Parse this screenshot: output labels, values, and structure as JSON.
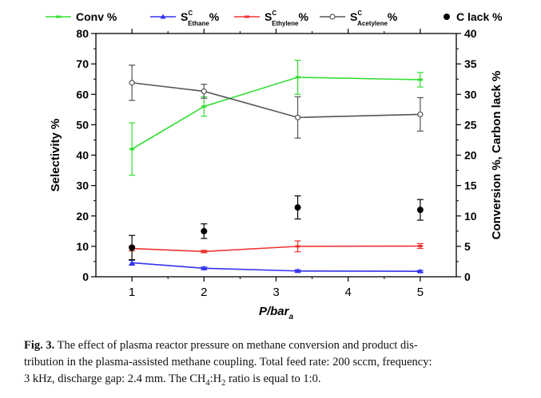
{
  "chart_data": {
    "type": "line",
    "x": [
      1,
      2,
      3.3,
      5
    ],
    "xlabel": "P/bar",
    "xlabel_sub": "a",
    "xticks": [
      "1",
      "2",
      "3",
      "4",
      "5"
    ],
    "xlim": [
      0.5,
      5.5
    ],
    "ylabel_left": "Selectivity %",
    "ylim_left": [
      0,
      80
    ],
    "yticks_left": [
      "0",
      "10",
      "20",
      "30",
      "40",
      "50",
      "60",
      "70",
      "80"
    ],
    "ylabel_right": "Conversion %, Carbon lack %",
    "ylim_right": [
      0,
      40
    ],
    "yticks_right": [
      "0",
      "5",
      "10",
      "15",
      "20",
      "25",
      "30",
      "35",
      "40"
    ],
    "legend_position": "top",
    "series": [
      {
        "name": "Conv %",
        "axis": "right",
        "color": "#33dd33",
        "marker": "dash",
        "line": true,
        "values": [
          21.0,
          28.0,
          32.8,
          32.4
        ],
        "errors": [
          4.3,
          1.6,
          2.8,
          1.2
        ]
      },
      {
        "name": "S",
        "name_sup": "C",
        "name_sub": "Ethane",
        "name_suffix": "%",
        "axis": "left",
        "color": "#3333ee",
        "marker": "triangle",
        "line": true,
        "values": [
          4.6,
          2.8,
          1.9,
          1.8
        ],
        "errors": [
          0.8,
          0.4,
          0.4,
          0.3
        ]
      },
      {
        "name": "S",
        "name_sup": "C",
        "name_sub": "Ethylene",
        "name_suffix": "%",
        "axis": "left",
        "color": "#ee3333",
        "marker": "dash",
        "line": true,
        "values": [
          9.3,
          8.3,
          10.0,
          10.1
        ],
        "errors": [
          0.8,
          0.4,
          1.8,
          0.8
        ]
      },
      {
        "name": "S",
        "name_sup": "C",
        "name_sub": "Acetylene",
        "name_suffix": "%",
        "axis": "left",
        "color": "#555555",
        "marker": "circle-open",
        "line": true,
        "values": [
          63.8,
          61.0,
          52.4,
          53.4
        ],
        "errors": [
          5.8,
          2.3,
          6.8,
          5.5
        ]
      },
      {
        "name": "C lack %",
        "axis": "right",
        "color": "#000000",
        "marker": "circle-filled",
        "line": false,
        "values": [
          4.8,
          7.5,
          11.4,
          11.0
        ],
        "errors": [
          2.0,
          1.2,
          1.9,
          1.7
        ]
      }
    ]
  },
  "caption": {
    "label": "Fig. 3.",
    "line1": "The effect of plasma reactor pressure on methane conversion and product dis-",
    "line2": "tribution in the plasma-assisted methane coupling. Total feed rate: 200 sccm, frequency:",
    "line3_a": "3 kHz, discharge gap: 2.4 mm. The CH",
    "line3_sub1": "4",
    "line3_b": ":H",
    "line3_sub2": "2",
    "line3_c": " ratio is equal to 1:0."
  }
}
